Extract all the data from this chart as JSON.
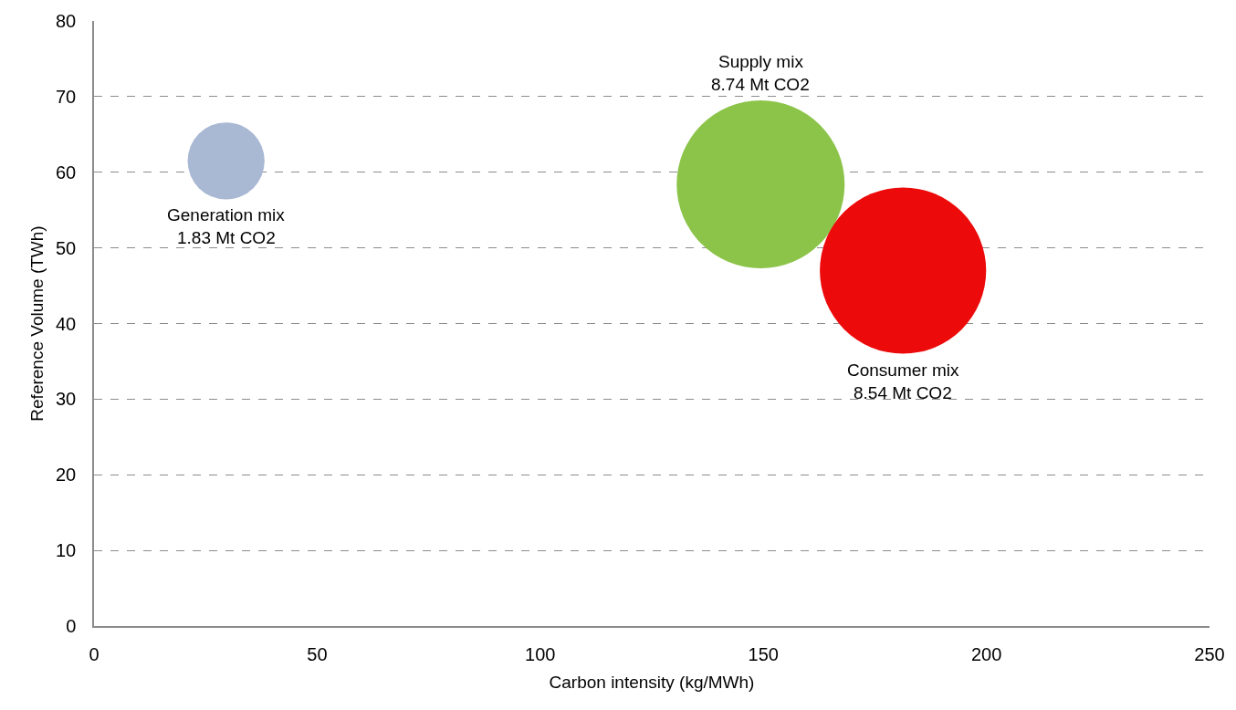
{
  "chart_data": {
    "type": "bubble",
    "xlabel": "Carbon intensity (kg/MWh)",
    "ylabel": "Reference Volume (TWh)",
    "xlim": [
      0,
      250
    ],
    "xticks": [
      0,
      50,
      100,
      150,
      200,
      250
    ],
    "ylim": [
      0,
      80
    ],
    "yticks": [
      0,
      10,
      20,
      30,
      40,
      50,
      60,
      70,
      80
    ],
    "grid": "y",
    "legend": false,
    "marker": "circle",
    "series": [
      {
        "name": "Generation mix",
        "color": "#a9b8d3",
        "x": [
          29.6
        ],
        "values": [
          61.5
        ],
        "sizes": [
          0.21
        ],
        "value_labels": [
          "1.83 Mt CO2"
        ]
      },
      {
        "name": "Supply mix",
        "color": "#8cc44a",
        "x": [
          149.4
        ],
        "values": [
          58.4
        ],
        "sizes": [
          1
        ],
        "value_labels": [
          "8.74 Mt CO2"
        ]
      },
      {
        "name": "Consumer mix",
        "color": "#ec0a0a",
        "x": [
          181.3
        ],
        "values": [
          47.0
        ],
        "sizes": [
          0.98
        ],
        "value_labels": [
          "8.54 Mt CO2"
        ]
      }
    ]
  }
}
